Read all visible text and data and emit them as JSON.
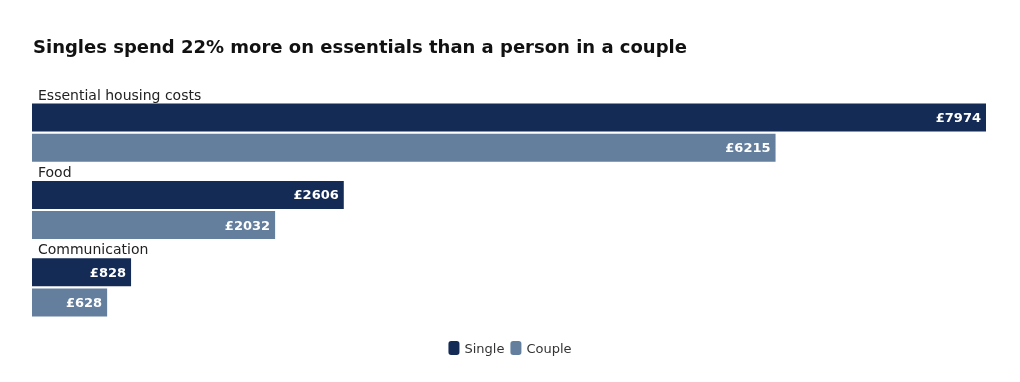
{
  "chart_data": {
    "type": "bar",
    "orientation": "horizontal",
    "title": "Singles spend 22% more on essentials than a person in a couple",
    "categories": [
      "Essential housing costs",
      "Food",
      "Communication"
    ],
    "series": [
      {
        "name": "Single",
        "color": "#142b55",
        "values": [
          7974,
          2606,
          828
        ],
        "value_labels": [
          "£7974",
          "£2606",
          "£828"
        ]
      },
      {
        "name": "Couple",
        "color": "#647f9e",
        "values": [
          6215,
          2032,
          628
        ],
        "value_labels": [
          "£6215",
          "£2032",
          "£628"
        ]
      }
    ],
    "legend": "bottom"
  }
}
